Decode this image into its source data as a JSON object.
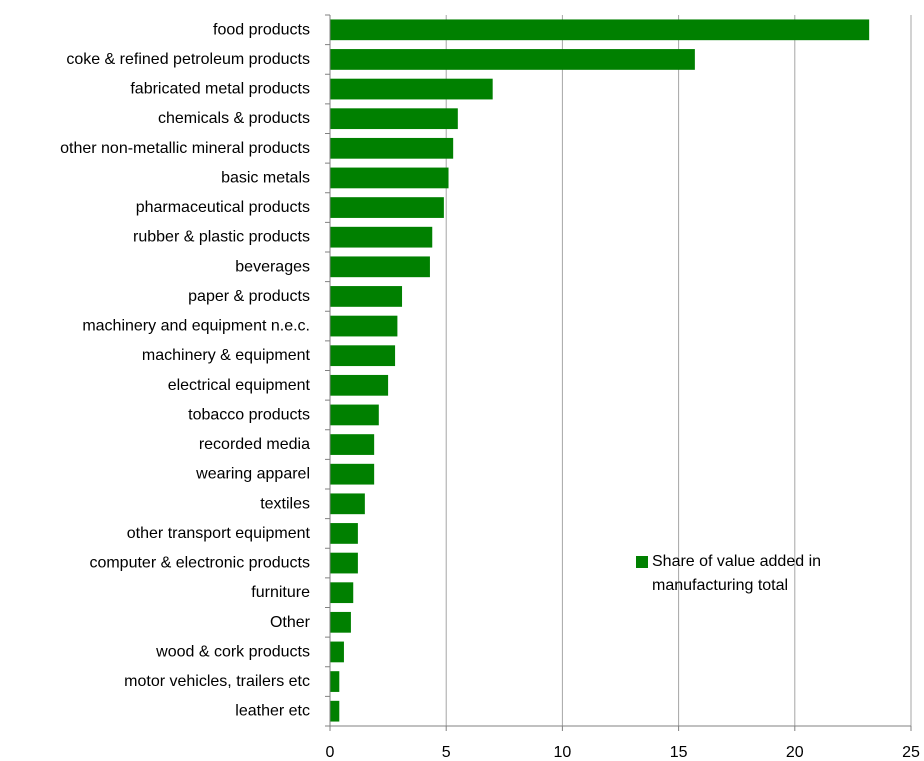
{
  "chart_data": {
    "type": "bar",
    "orientation": "horizontal",
    "categories": [
      "food products",
      "coke & refined petroleum products",
      "fabricated metal products",
      "chemicals & products",
      "other non-metallic mineral products",
      "basic metals",
      "pharmaceutical products ",
      "rubber & plastic products",
      "beverages",
      "paper & products",
      "machinery and equipment n.e.c.",
      "machinery & equipment",
      "electrical equipment",
      "tobacco products",
      "recorded media",
      "wearing apparel",
      "textiles",
      "other transport equipment",
      "computer & electronic products",
      "furniture",
      "Other",
      "wood & cork products",
      "motor vehicles, trailers etc",
      "leather etc"
    ],
    "series": [
      {
        "name": "Share of value added in manufacturing total",
        "color": "#008000",
        "values": [
          23.2,
          15.7,
          7.0,
          5.5,
          5.3,
          5.1,
          4.9,
          4.4,
          4.3,
          3.1,
          2.9,
          2.8,
          2.5,
          2.1,
          1.9,
          1.9,
          1.5,
          1.2,
          1.2,
          1.0,
          0.9,
          0.6,
          0.4,
          0.4
        ]
      }
    ],
    "xlim": [
      0,
      25
    ],
    "x_ticks": [
      0,
      5,
      10,
      15,
      20,
      25
    ],
    "x_tick_labels": [
      "0",
      "5",
      "10",
      "15",
      "20",
      "25"
    ],
    "grid": "vertical",
    "legend_position": "bottom-right",
    "legend": {
      "line1": "Share of value added in",
      "line2": "manufacturing total"
    },
    "title": "",
    "xlabel": "",
    "ylabel": ""
  },
  "colors": {
    "bar": "#008000",
    "grid": "#a6a6a6",
    "axis": "#808080"
  }
}
